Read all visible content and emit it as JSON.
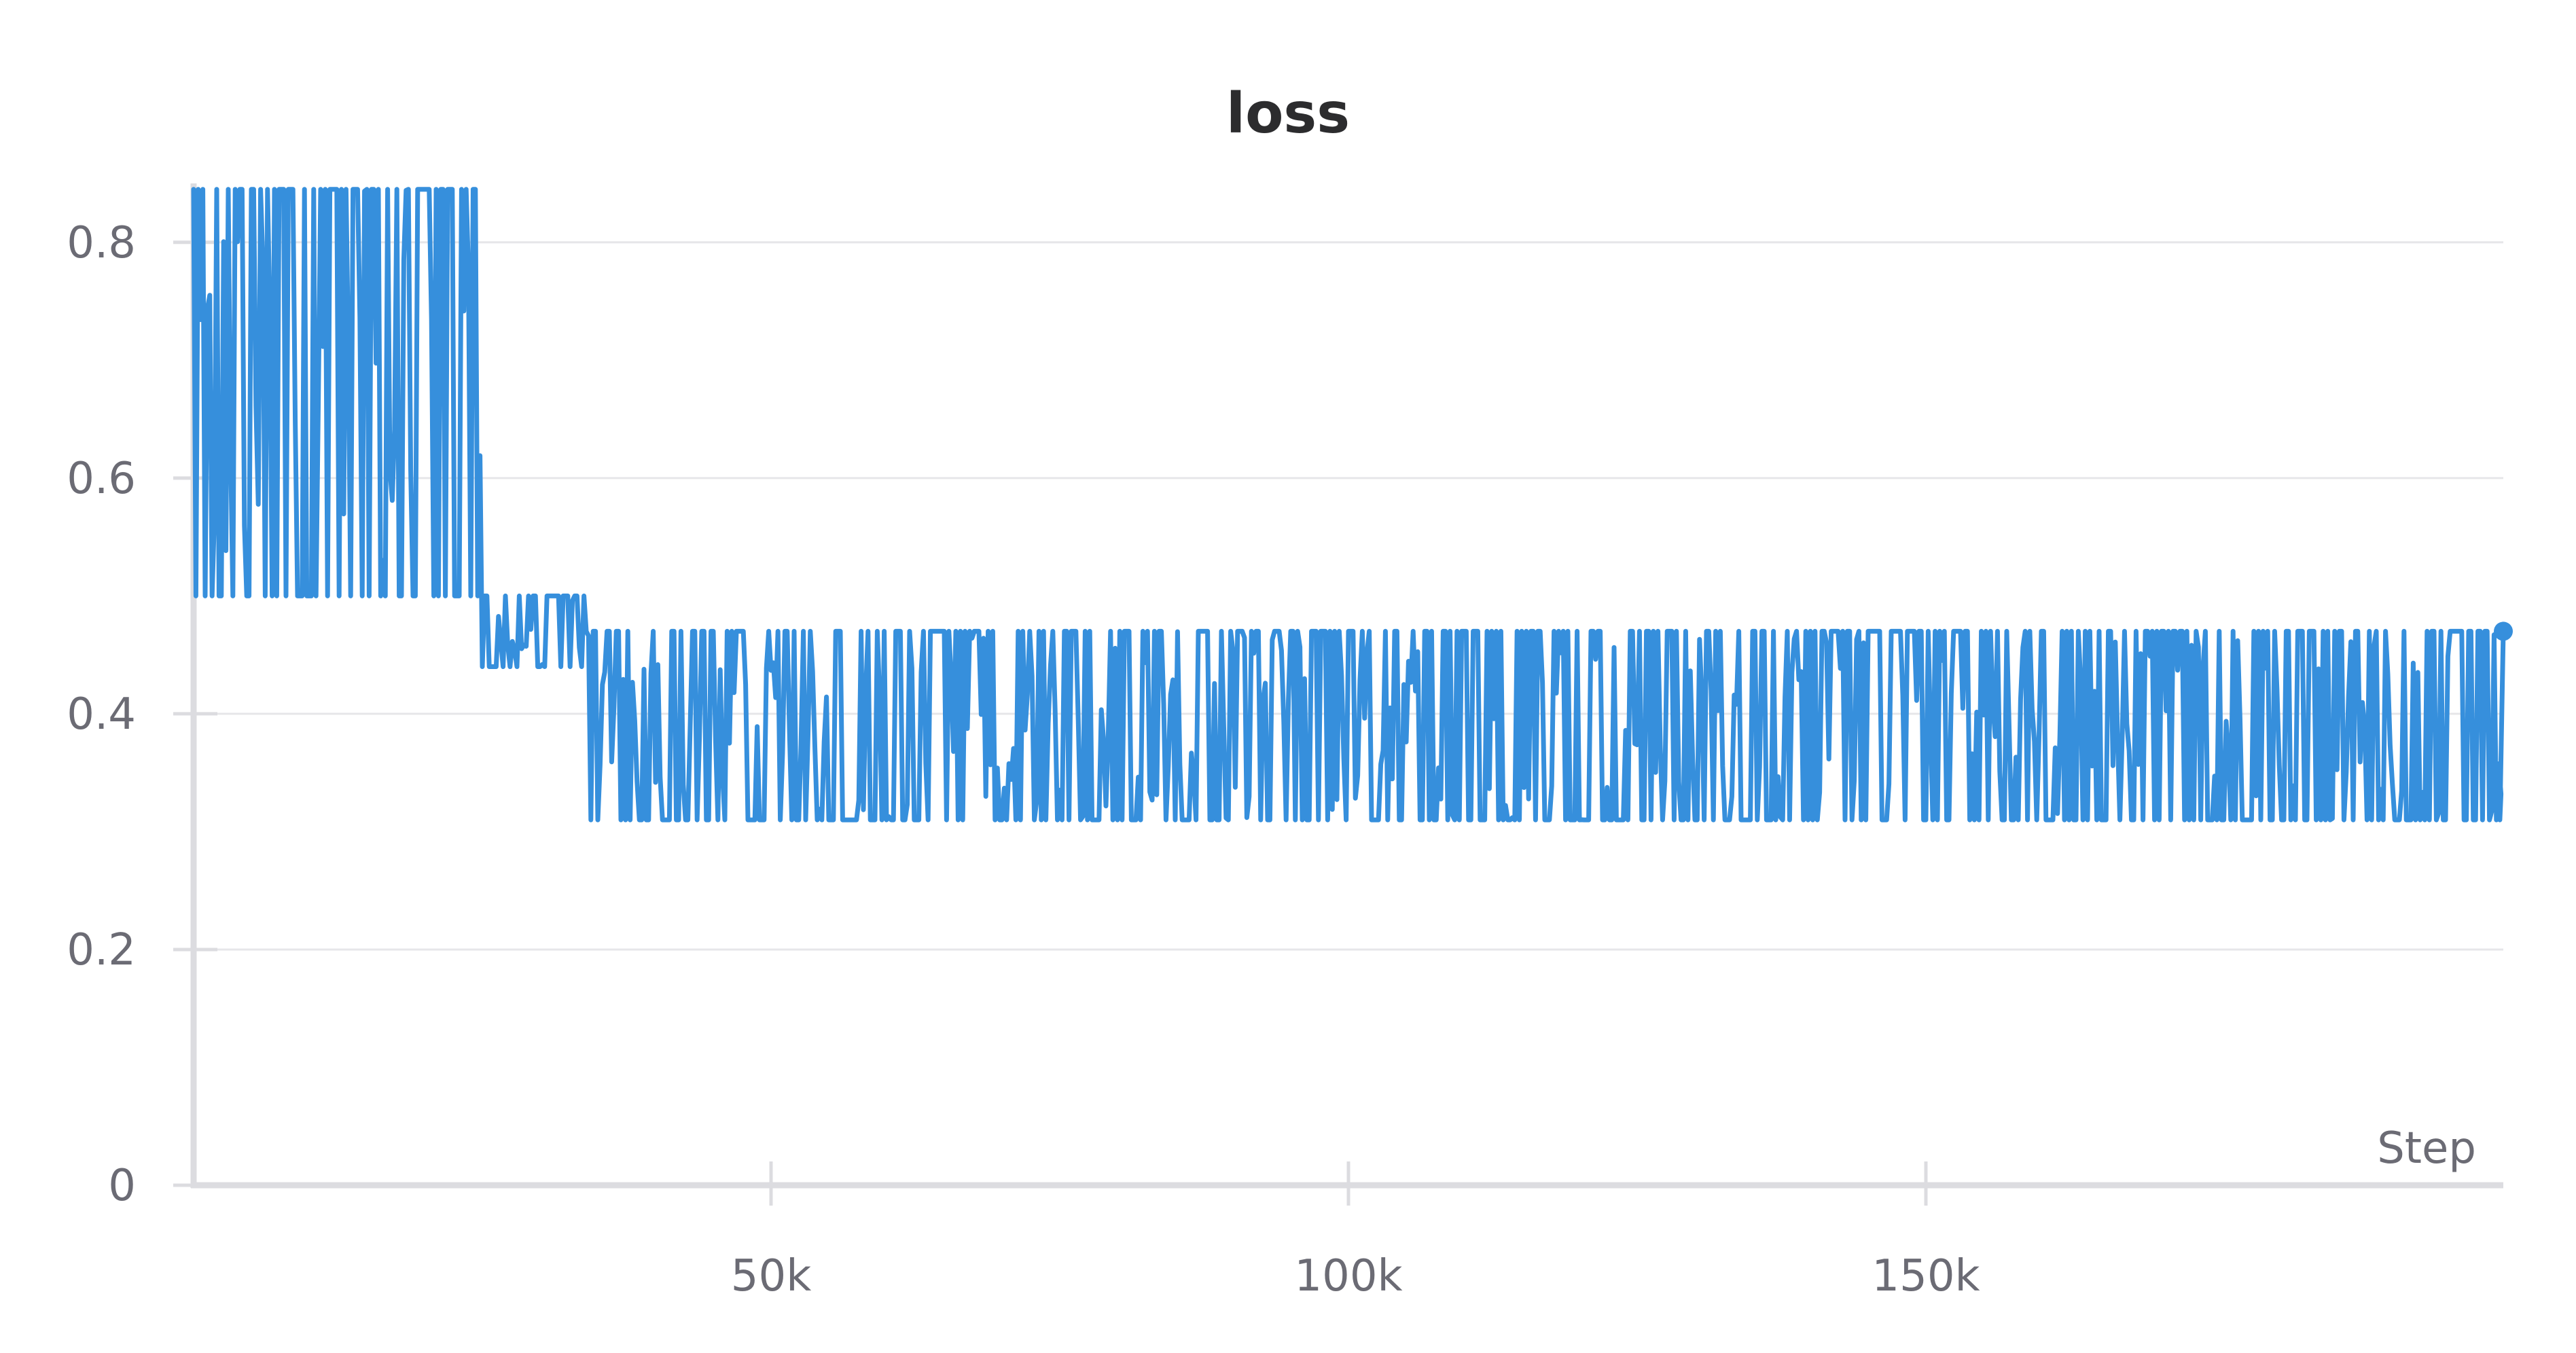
{
  "chart_data": {
    "type": "line",
    "title": "loss",
    "xlabel": "Step",
    "ylabel": "",
    "xlim": [
      0,
      200000
    ],
    "ylim": [
      0,
      0.85
    ],
    "xticks": [
      50000,
      100000,
      150000
    ],
    "xtick_labels": [
      "50k",
      "100k",
      "150k"
    ],
    "yticks": [
      0,
      0.2,
      0.4,
      0.6,
      0.8
    ],
    "ytick_labels": [
      "0",
      "0.2",
      "0.4",
      "0.6",
      "0.8"
    ],
    "grid": true,
    "series": [
      {
        "name": "loss",
        "color": "#368fdc",
        "phases": [
          {
            "from": 0,
            "to": 25000,
            "low": 0.5,
            "high": 0.845,
            "mid": 0.6
          },
          {
            "from": 25000,
            "to": 34000,
            "low": 0.44,
            "high": 0.5,
            "mid": 0.47
          },
          {
            "from": 34000,
            "to": 200000,
            "low": 0.31,
            "high": 0.47,
            "mid": 0.38
          }
        ],
        "last_value": 0.47
      }
    ]
  }
}
